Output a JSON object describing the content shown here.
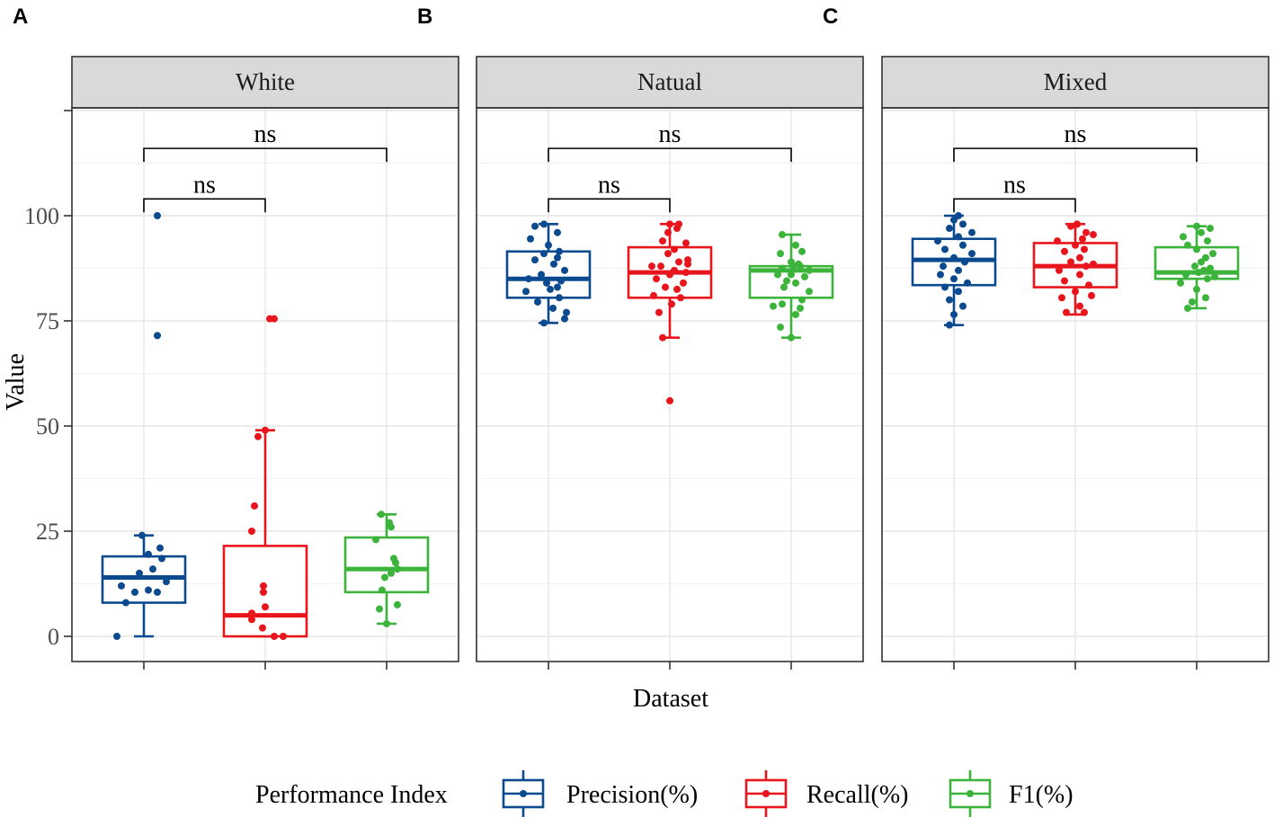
{
  "chart_data": {
    "type": "box",
    "ylabel": "Value",
    "xlabel": "Dataset",
    "ylim": [
      -5,
      126
    ],
    "yticks": [
      "0",
      "25",
      "50",
      "75",
      "100"
    ],
    "grid": true,
    "legend": {
      "title": "Performance Index",
      "position": "bottom",
      "entries": [
        "Precision(%)",
        "Recall(%)",
        "F1(%)"
      ]
    },
    "colors": {
      "Precision(%)": "#0b4a8f",
      "Recall(%)": "#e8161c",
      "F1(%)": "#3cb33a"
    },
    "panels": [
      {
        "tag": "A",
        "title": "White",
        "significance": [
          {
            "from": 0,
            "to": 2,
            "y": 116,
            "label": "ns"
          },
          {
            "from": 0,
            "to": 1,
            "y": 104,
            "label": "ns"
          }
        ],
        "boxes": [
          {
            "series": "Precision(%)",
            "min": 0,
            "q1": 8,
            "median": 14,
            "q3": 19,
            "max": 24,
            "points": [
              [
                -0.3,
                0
              ],
              [
                -0.2,
                8
              ],
              [
                -0.1,
                10.5
              ],
              [
                0.05,
                11
              ],
              [
                0.15,
                10.5
              ],
              [
                -0.25,
                12
              ],
              [
                0.25,
                13
              ],
              [
                -0.05,
                15
              ],
              [
                0.1,
                16
              ],
              [
                0.2,
                18.5
              ],
              [
                0.05,
                19.5
              ],
              [
                0.18,
                21
              ],
              [
                -0.02,
                24
              ],
              [
                0.15,
                71.5
              ],
              [
                0.15,
                100
              ]
            ]
          },
          {
            "series": "Recall(%)",
            "min": 0,
            "q1": 0,
            "median": 5,
            "q3": 21.5,
            "max": 49,
            "points": [
              [
                0.1,
                0
              ],
              [
                0.2,
                0
              ],
              [
                -0.03,
                2
              ],
              [
                -0.15,
                4
              ],
              [
                -0.15,
                5.5
              ],
              [
                0.0,
                7
              ],
              [
                -0.02,
                10.5
              ],
              [
                -0.02,
                12
              ],
              [
                -0.15,
                25
              ],
              [
                -0.12,
                31
              ],
              [
                -0.08,
                47.5
              ],
              [
                0.0,
                49
              ],
              [
                0.05,
                75.5
              ],
              [
                0.1,
                75.5
              ]
            ]
          },
          {
            "series": "F1(%)",
            "min": 3,
            "q1": 10.5,
            "median": 16,
            "q3": 23.5,
            "max": 29,
            "points": [
              [
                0.0,
                3
              ],
              [
                -0.08,
                6.5
              ],
              [
                0.12,
                7.5
              ],
              [
                -0.05,
                11
              ],
              [
                -0.02,
                14
              ],
              [
                0.05,
                15
              ],
              [
                0.12,
                16
              ],
              [
                0.1,
                17.5
              ],
              [
                0.08,
                18.5
              ],
              [
                -0.12,
                23
              ],
              [
                0.05,
                26
              ],
              [
                0.03,
                27
              ],
              [
                -0.06,
                29
              ]
            ]
          }
        ]
      },
      {
        "tag": "B",
        "title": "Natual",
        "significance": [
          {
            "from": 0,
            "to": 2,
            "y": 116,
            "label": "ns"
          },
          {
            "from": 0,
            "to": 1,
            "y": 104,
            "label": "ns"
          }
        ],
        "boxes": [
          {
            "series": "Precision(%)",
            "min": 74.5,
            "q1": 80.5,
            "median": 85,
            "q3": 91.5,
            "max": 98,
            "points": [
              [
                -0.05,
                74.5
              ],
              [
                0.18,
                75.5
              ],
              [
                0.2,
                77
              ],
              [
                0.05,
                78
              ],
              [
                -0.12,
                79.5
              ],
              [
                0.12,
                80.5
              ],
              [
                -0.25,
                82
              ],
              [
                0.02,
                82.5
              ],
              [
                0.1,
                83
              ],
              [
                -0.02,
                84
              ],
              [
                0.14,
                84.5
              ],
              [
                -0.22,
                85
              ],
              [
                -0.08,
                86
              ],
              [
                0.18,
                87
              ],
              [
                0.06,
                88.5
              ],
              [
                -0.15,
                89.5
              ],
              [
                0.1,
                90
              ],
              [
                -0.05,
                91
              ],
              [
                0.12,
                91.5
              ],
              [
                0.0,
                93
              ],
              [
                -0.2,
                94.5
              ],
              [
                0.1,
                96
              ],
              [
                -0.15,
                97.5
              ],
              [
                -0.05,
                98
              ]
            ]
          },
          {
            "series": "Recall(%)",
            "min": 71,
            "q1": 80.5,
            "median": 86.5,
            "q3": 92.5,
            "max": 98,
            "points": [
              [
                0.0,
                56
              ],
              [
                -0.08,
                71
              ],
              [
                -0.12,
                77
              ],
              [
                0.02,
                79
              ],
              [
                0.12,
                80.5
              ],
              [
                -0.18,
                81
              ],
              [
                0.08,
                82.5
              ],
              [
                -0.05,
                83
              ],
              [
                0.15,
                84
              ],
              [
                -0.15,
                85
              ],
              [
                0.0,
                86
              ],
              [
                0.18,
                86.5
              ],
              [
                0.05,
                87
              ],
              [
                -0.1,
                88
              ],
              [
                0.2,
                88.5
              ],
              [
                -0.2,
                88
              ],
              [
                0.1,
                89
              ],
              [
                0.2,
                89.5
              ],
              [
                -0.02,
                91
              ],
              [
                0.05,
                92
              ],
              [
                0.18,
                93.5
              ],
              [
                -0.08,
                94
              ],
              [
                -0.02,
                96
              ],
              [
                0.08,
                97
              ],
              [
                0.0,
                98
              ],
              [
                0.1,
                98
              ]
            ]
          },
          {
            "series": "F1(%)",
            "min": 71,
            "q1": 80.5,
            "median": 87,
            "q3": 88,
            "max": 95.5,
            "points": [
              [
                0.0,
                71
              ],
              [
                -0.12,
                73.5
              ],
              [
                0.05,
                76.5
              ],
              [
                0.1,
                78
              ],
              [
                -0.2,
                78.5
              ],
              [
                -0.1,
                79
              ],
              [
                0.12,
                80
              ],
              [
                0.2,
                82
              ],
              [
                -0.08,
                83
              ],
              [
                0.05,
                84
              ],
              [
                -0.05,
                84.5
              ],
              [
                0.15,
                85.5
              ],
              [
                -0.15,
                86
              ],
              [
                0.0,
                86
              ],
              [
                0.2,
                87
              ],
              [
                -0.1,
                87.5
              ],
              [
                0.1,
                88
              ],
              [
                0.02,
                88
              ],
              [
                0.08,
                88.5
              ],
              [
                0.0,
                89
              ],
              [
                -0.12,
                91
              ],
              [
                0.12,
                91.5
              ],
              [
                0.05,
                93
              ],
              [
                -0.1,
                95.5
              ]
            ]
          }
        ]
      },
      {
        "tag": "C",
        "title": "Mixed",
        "significance": [
          {
            "from": 0,
            "to": 2,
            "y": 116,
            "label": "ns"
          },
          {
            "from": 0,
            "to": 1,
            "y": 104,
            "label": "ns"
          }
        ],
        "boxes": [
          {
            "series": "Precision(%)",
            "min": 74,
            "q1": 83.5,
            "median": 89.5,
            "q3": 94.5,
            "max": 100,
            "points": [
              [
                -0.05,
                74
              ],
              [
                0.0,
                76.5
              ],
              [
                0.1,
                78.5
              ],
              [
                -0.05,
                80
              ],
              [
                0.05,
                82
              ],
              [
                -0.1,
                83
              ],
              [
                0.15,
                84
              ],
              [
                0.0,
                85
              ],
              [
                -0.15,
                86
              ],
              [
                0.05,
                87
              ],
              [
                -0.12,
                88
              ],
              [
                0.12,
                89
              ],
              [
                0.0,
                90
              ],
              [
                0.2,
                91
              ],
              [
                -0.1,
                92
              ],
              [
                0.1,
                93
              ],
              [
                -0.18,
                94
              ],
              [
                0.05,
                95
              ],
              [
                0.2,
                96
              ],
              [
                -0.05,
                97
              ],
              [
                0.1,
                98
              ],
              [
                0.0,
                99
              ],
              [
                0.05,
                100
              ]
            ]
          },
          {
            "series": "Recall(%)",
            "min": 76.5,
            "q1": 83,
            "median": 88,
            "q3": 93.5,
            "max": 98,
            "points": [
              [
                -0.1,
                77
              ],
              [
                0.1,
                77
              ],
              [
                0.05,
                78.5
              ],
              [
                -0.15,
                80.5
              ],
              [
                0.18,
                81
              ],
              [
                0.0,
                82
              ],
              [
                0.15,
                83.5
              ],
              [
                -0.12,
                84.5
              ],
              [
                0.05,
                86
              ],
              [
                -0.18,
                87
              ],
              [
                0.12,
                88
              ],
              [
                0.2,
                88.5
              ],
              [
                -0.05,
                89
              ],
              [
                0.05,
                90
              ],
              [
                -0.12,
                91.5
              ],
              [
                0.1,
                92
              ],
              [
                0.0,
                93
              ],
              [
                -0.2,
                94
              ],
              [
                0.08,
                94.5
              ],
              [
                0.2,
                95.5
              ],
              [
                0.12,
                96
              ],
              [
                -0.05,
                97.5
              ],
              [
                0.02,
                98
              ]
            ]
          },
          {
            "series": "F1(%)",
            "min": 78,
            "q1": 85,
            "median": 86.5,
            "q3": 92.5,
            "max": 97.5,
            "points": [
              [
                -0.1,
                78
              ],
              [
                -0.05,
                79.5
              ],
              [
                0.1,
                80.5
              ],
              [
                0.0,
                82.5
              ],
              [
                -0.18,
                84
              ],
              [
                0.12,
                85
              ],
              [
                0.2,
                85.5
              ],
              [
                -0.12,
                86
              ],
              [
                0.02,
                86.5
              ],
              [
                0.08,
                87
              ],
              [
                0.15,
                87.5
              ],
              [
                -0.02,
                88
              ],
              [
                0.05,
                89
              ],
              [
                0.1,
                90
              ],
              [
                0.18,
                91
              ],
              [
                0.0,
                92
              ],
              [
                -0.1,
                93
              ],
              [
                0.12,
                94
              ],
              [
                -0.15,
                95
              ],
              [
                0.05,
                96
              ],
              [
                0.15,
                97
              ],
              [
                0.0,
                97.5
              ]
            ]
          }
        ]
      }
    ]
  }
}
